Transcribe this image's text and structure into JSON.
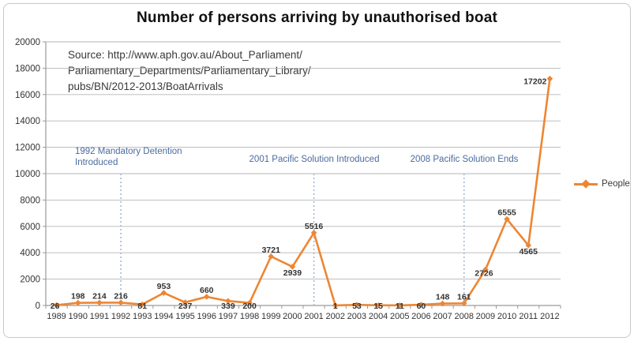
{
  "colors": {
    "line": "#ED8633",
    "annotation_text": "#4A6C9D",
    "event_line": "#A3B9D8",
    "grid": "#B6B6B6",
    "axis": "#9A9A9A",
    "label": "#333333",
    "title": "#111111"
  },
  "legend": {
    "label": "People"
  },
  "chart_data": {
    "type": "line",
    "title": "Number of persons arriving by unauthorised boat",
    "categories": [
      "1989",
      "1990",
      "1991",
      "1992",
      "1993",
      "1994",
      "1995",
      "1996",
      "1997",
      "1998",
      "1999",
      "2000",
      "2001",
      "2002",
      "2003",
      "2004",
      "2005",
      "2006",
      "2007",
      "2008",
      "2009",
      "2010",
      "2011",
      "2012"
    ],
    "series": [
      {
        "name": "People",
        "values": [
          26,
          198,
          214,
          216,
          81,
          953,
          237,
          660,
          339,
          200,
          3721,
          2939,
          5516,
          1,
          53,
          15,
          11,
          60,
          148,
          161,
          2726,
          6555,
          4565,
          17202
        ],
        "label_positions": [
          "below-left",
          "above",
          "above",
          "above",
          "below",
          "above",
          "below",
          "above",
          "below",
          "below",
          "above",
          "below",
          "above",
          "below",
          "below",
          "below",
          "below",
          "below",
          "above",
          "above",
          "below-left",
          "above",
          "below",
          "left"
        ]
      }
    ],
    "xlabel": "",
    "ylabel": "",
    "ylim": [
      0,
      20000
    ],
    "ytick_step": 2000,
    "grid": true,
    "legend_position": "right",
    "source_lines": [
      "Source: http://www.aph.gov.au/About_Parliament/",
      "Parliamentary_Departments/Parliamentary_Library/",
      "pubs/BN/2012-2013/BoatArrivals"
    ],
    "annotations": [
      {
        "category": "1992",
        "line_top_value": 10000,
        "text_line1": "1992 Mandatory Detention",
        "text_line2": "Introduced"
      },
      {
        "category": "2001",
        "line_top_value": 10000,
        "text_line1": "2001 Pacific Solution Introduced",
        "text_line2": ""
      },
      {
        "category": "2008",
        "line_top_value": 10000,
        "text_line1": "2008 Pacific Solution Ends",
        "text_line2": ""
      }
    ]
  }
}
